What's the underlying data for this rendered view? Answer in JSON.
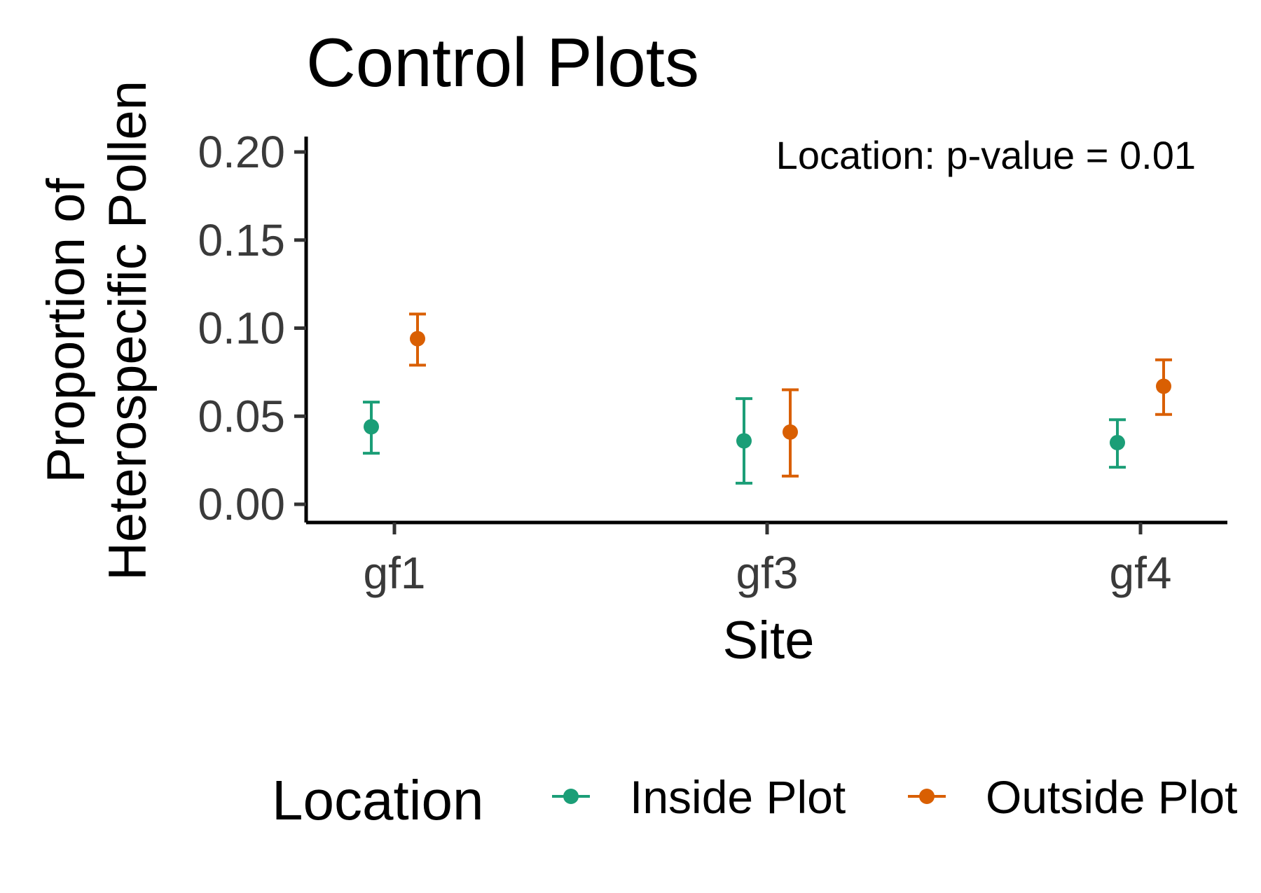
{
  "chart_data": {
    "type": "scatter",
    "title": "Control Plots",
    "xlabel": "Site",
    "ylabel": [
      "Proportion of",
      "Heterospecific Pollen"
    ],
    "categories": [
      "gf1",
      "gf3",
      "gf4"
    ],
    "ylim": [
      -0.01,
      0.21
    ],
    "yticks": [
      0.0,
      0.05,
      0.1,
      0.15,
      0.2
    ],
    "ytick_labels": [
      "0.00",
      "0.05",
      "0.10",
      "0.15",
      "0.20"
    ],
    "grid": false,
    "annotation": "Location: p-value = 0.01",
    "legend": {
      "title": "Location",
      "position": "bottom"
    },
    "series": [
      {
        "name": "Inside Plot",
        "color": "#1b9e77",
        "values": [
          0.044,
          0.036,
          0.035
        ],
        "lower": [
          0.029,
          0.012,
          0.021
        ],
        "upper": [
          0.058,
          0.06,
          0.048
        ]
      },
      {
        "name": "Outside Plot",
        "color": "#d95f02",
        "values": [
          0.094,
          0.041,
          0.067
        ],
        "lower": [
          0.079,
          0.016,
          0.051
        ],
        "upper": [
          0.108,
          0.065,
          0.082
        ]
      }
    ]
  }
}
